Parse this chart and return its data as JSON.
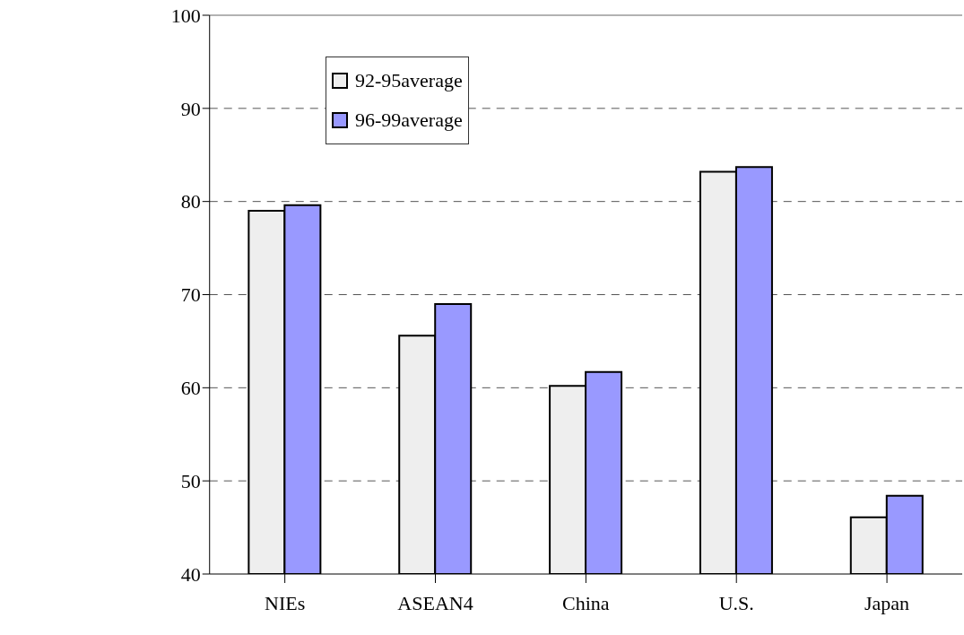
{
  "chart_data": {
    "type": "bar",
    "categories": [
      "NIEs",
      "ASEAN4",
      "China",
      "U.S.",
      "Japan"
    ],
    "series": [
      {
        "name": "92-95average",
        "color": "#eeeeee",
        "values": [
          79.0,
          65.6,
          60.2,
          83.2,
          46.1
        ]
      },
      {
        "name": "96-99average",
        "color": "#9999ff",
        "values": [
          79.6,
          69.0,
          61.7,
          83.7,
          48.4
        ]
      }
    ],
    "ylim": [
      40,
      100
    ],
    "yticks": [
      40,
      50,
      60,
      70,
      80,
      90,
      100
    ],
    "grid": "y",
    "legend": "top"
  }
}
